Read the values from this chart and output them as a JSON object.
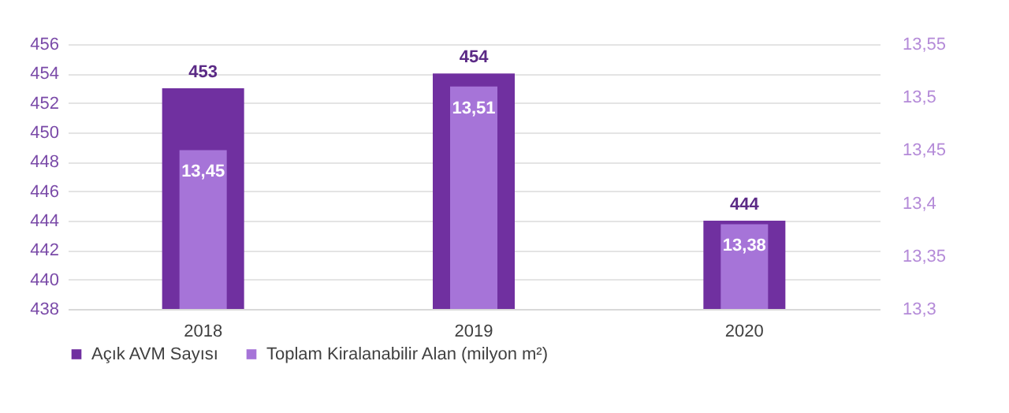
{
  "chart_data": {
    "type": "bar",
    "categories": [
      "2018",
      "2019",
      "2020"
    ],
    "series": [
      {
        "name": "Açık AVM Sayısı",
        "color": "#7030a0",
        "values": [
          453,
          454,
          444
        ],
        "value_labels": [
          "453",
          "454",
          "444"
        ]
      },
      {
        "name": "Toplam Kiralanabilir Alan (milyon m²)",
        "color": "#a674d8",
        "axis": "y2",
        "values": [
          13.45,
          13.51,
          13.38
        ],
        "value_labels": [
          "13,45",
          "13,51",
          "13,38"
        ]
      }
    ],
    "ylim": [
      438,
      456
    ],
    "yticks": [
      438,
      440,
      442,
      444,
      446,
      448,
      450,
      452,
      454,
      456
    ],
    "y2lim": [
      13.3,
      13.55
    ],
    "y2ticks": [
      {
        "value": 13.3,
        "label": "13,3"
      },
      {
        "value": 13.35,
        "label": "13,35"
      },
      {
        "value": 13.4,
        "label": "13,4"
      },
      {
        "value": 13.45,
        "label": "13,45"
      },
      {
        "value": 13.5,
        "label": "13,5"
      },
      {
        "value": 13.55,
        "label": "13,55"
      }
    ],
    "grid": "y",
    "legend": "bottom"
  }
}
